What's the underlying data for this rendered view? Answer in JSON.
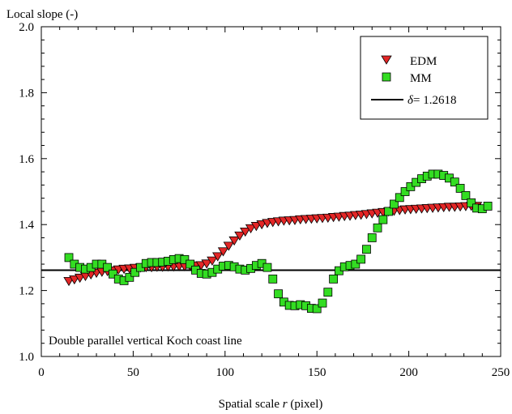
{
  "chart_data": {
    "type": "scatter",
    "ylabel": "Local slope (-)",
    "xlabel_prefix": "Spatial scale ",
    "xlabel_var": "r",
    "xlabel_suffix": " (pixel)",
    "annotation": "Double parallel vertical Koch coast line",
    "xlim": [
      0,
      250
    ],
    "ylim": [
      1.0,
      2.0
    ],
    "x_ticks": [
      "0",
      "50",
      "100",
      "150",
      "200",
      "250"
    ],
    "y_ticks": [
      "1.0",
      "1.2",
      "1.4",
      "1.6",
      "1.8",
      "2.0"
    ],
    "grid": false,
    "legend_position": "top-right",
    "reference_line": {
      "symbol": "δ",
      "label": "= 1.2618",
      "y": 1.2618,
      "color": "#000000"
    },
    "series": [
      {
        "name": "EDM",
        "marker": "triangle-down",
        "color": "#e32626",
        "points": [
          [
            15,
            1.23
          ],
          [
            18,
            1.235
          ],
          [
            21,
            1.24
          ],
          [
            24,
            1.245
          ],
          [
            27,
            1.25
          ],
          [
            30,
            1.255
          ],
          [
            33,
            1.258
          ],
          [
            36,
            1.26
          ],
          [
            39,
            1.262
          ],
          [
            42,
            1.265
          ],
          [
            45,
            1.267
          ],
          [
            48,
            1.268
          ],
          [
            51,
            1.27
          ],
          [
            54,
            1.271
          ],
          [
            57,
            1.272
          ],
          [
            60,
            1.272
          ],
          [
            63,
            1.273
          ],
          [
            66,
            1.273
          ],
          [
            69,
            1.274
          ],
          [
            72,
            1.274
          ],
          [
            75,
            1.275
          ],
          [
            78,
            1.275
          ],
          [
            81,
            1.276
          ],
          [
            84,
            1.277
          ],
          [
            87,
            1.278
          ],
          [
            90,
            1.283
          ],
          [
            93,
            1.292
          ],
          [
            96,
            1.305
          ],
          [
            99,
            1.32
          ],
          [
            102,
            1.337
          ],
          [
            105,
            1.353
          ],
          [
            108,
            1.368
          ],
          [
            111,
            1.38
          ],
          [
            114,
            1.39
          ],
          [
            117,
            1.397
          ],
          [
            120,
            1.402
          ],
          [
            123,
            1.406
          ],
          [
            126,
            1.409
          ],
          [
            129,
            1.411
          ],
          [
            132,
            1.413
          ],
          [
            135,
            1.414
          ],
          [
            138,
            1.415
          ],
          [
            141,
            1.417
          ],
          [
            144,
            1.418
          ],
          [
            147,
            1.419
          ],
          [
            150,
            1.42
          ],
          [
            153,
            1.421
          ],
          [
            156,
            1.422
          ],
          [
            159,
            1.424
          ],
          [
            162,
            1.425
          ],
          [
            165,
            1.427
          ],
          [
            168,
            1.428
          ],
          [
            171,
            1.43
          ],
          [
            174,
            1.431
          ],
          [
            177,
            1.433
          ],
          [
            180,
            1.435
          ],
          [
            183,
            1.437
          ],
          [
            186,
            1.439
          ],
          [
            189,
            1.441
          ],
          [
            192,
            1.443
          ],
          [
            195,
            1.445
          ],
          [
            198,
            1.447
          ],
          [
            201,
            1.448
          ],
          [
            204,
            1.449
          ],
          [
            207,
            1.45
          ],
          [
            210,
            1.451
          ],
          [
            213,
            1.452
          ],
          [
            216,
            1.453
          ],
          [
            219,
            1.454
          ],
          [
            222,
            1.455
          ],
          [
            225,
            1.455
          ],
          [
            228,
            1.456
          ],
          [
            231,
            1.457
          ],
          [
            234,
            1.458
          ],
          [
            237,
            1.458
          ]
        ]
      },
      {
        "name": "MM",
        "marker": "square",
        "color": "#33dd22",
        "points": [
          [
            15,
            1.3
          ],
          [
            18,
            1.28
          ],
          [
            21,
            1.27
          ],
          [
            24,
            1.265
          ],
          [
            27,
            1.27
          ],
          [
            30,
            1.28
          ],
          [
            33,
            1.28
          ],
          [
            36,
            1.27
          ],
          [
            39,
            1.25
          ],
          [
            42,
            1.235
          ],
          [
            45,
            1.23
          ],
          [
            48,
            1.24
          ],
          [
            51,
            1.255
          ],
          [
            54,
            1.27
          ],
          [
            57,
            1.282
          ],
          [
            60,
            1.285
          ],
          [
            63,
            1.285
          ],
          [
            66,
            1.286
          ],
          [
            69,
            1.289
          ],
          [
            72,
            1.294
          ],
          [
            75,
            1.297
          ],
          [
            78,
            1.294
          ],
          [
            81,
            1.28
          ],
          [
            84,
            1.262
          ],
          [
            87,
            1.252
          ],
          [
            90,
            1.25
          ],
          [
            93,
            1.255
          ],
          [
            96,
            1.265
          ],
          [
            99,
            1.274
          ],
          [
            102,
            1.276
          ],
          [
            105,
            1.272
          ],
          [
            108,
            1.265
          ],
          [
            111,
            1.262
          ],
          [
            114,
            1.267
          ],
          [
            117,
            1.276
          ],
          [
            120,
            1.282
          ],
          [
            123,
            1.27
          ],
          [
            126,
            1.235
          ],
          [
            129,
            1.19
          ],
          [
            132,
            1.165
          ],
          [
            135,
            1.155
          ],
          [
            138,
            1.154
          ],
          [
            141,
            1.157
          ],
          [
            144,
            1.154
          ],
          [
            147,
            1.146
          ],
          [
            150,
            1.145
          ],
          [
            153,
            1.162
          ],
          [
            156,
            1.195
          ],
          [
            159,
            1.235
          ],
          [
            162,
            1.26
          ],
          [
            165,
            1.272
          ],
          [
            168,
            1.276
          ],
          [
            171,
            1.28
          ],
          [
            174,
            1.295
          ],
          [
            177,
            1.325
          ],
          [
            180,
            1.36
          ],
          [
            183,
            1.39
          ],
          [
            186,
            1.415
          ],
          [
            189,
            1.44
          ],
          [
            192,
            1.462
          ],
          [
            195,
            1.482
          ],
          [
            198,
            1.5
          ],
          [
            201,
            1.515
          ],
          [
            204,
            1.528
          ],
          [
            207,
            1.539
          ],
          [
            210,
            1.547
          ],
          [
            213,
            1.553
          ],
          [
            216,
            1.553
          ],
          [
            219,
            1.549
          ],
          [
            222,
            1.541
          ],
          [
            225,
            1.529
          ],
          [
            228,
            1.51
          ],
          [
            231,
            1.488
          ],
          [
            234,
            1.466
          ],
          [
            237,
            1.45
          ],
          [
            240,
            1.448
          ],
          [
            243,
            1.456
          ]
        ]
      }
    ]
  }
}
